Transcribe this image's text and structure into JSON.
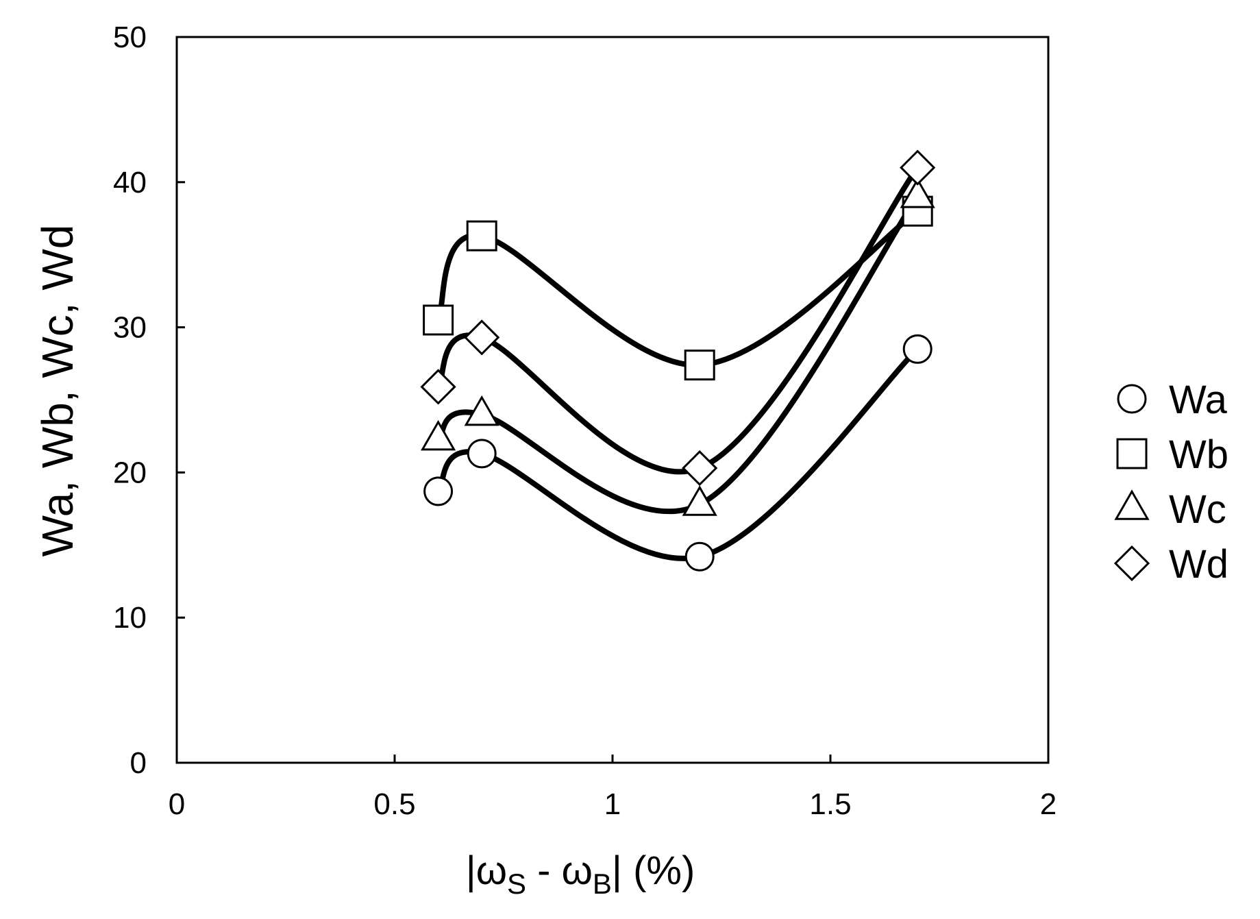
{
  "chart_data": {
    "type": "line",
    "xlim": [
      0,
      2
    ],
    "ylim": [
      0,
      50
    ],
    "xticks": [
      {
        "value": 0,
        "label": "0"
      },
      {
        "value": 0.5,
        "label": "0.5"
      },
      {
        "value": 1,
        "label": "1"
      },
      {
        "value": 1.5,
        "label": "1.5"
      },
      {
        "value": 2,
        "label": "2"
      }
    ],
    "yticks": [
      {
        "value": 0,
        "label": "0"
      },
      {
        "value": 10,
        "label": "10"
      },
      {
        "value": 20,
        "label": "20"
      },
      {
        "value": 30,
        "label": "30"
      },
      {
        "value": 40,
        "label": "40"
      },
      {
        "value": 50,
        "label": "50"
      }
    ],
    "xlabel": {
      "prefix": "|ω",
      "sub1": "S",
      "mid": " - ω",
      "sub2": "B",
      "suffix": "| (%)"
    },
    "ylabel": "Wa, Wb, Wc, Wd",
    "grid": false,
    "legend_position": "right",
    "x": [
      0.6,
      0.7,
      1.2,
      1.7
    ],
    "series": [
      {
        "name": "Wa",
        "marker": "circle",
        "values": [
          18.7,
          21.3,
          14.2,
          28.5
        ]
      },
      {
        "name": "Wb",
        "marker": "square",
        "values": [
          30.5,
          36.3,
          27.4,
          38.0
        ]
      },
      {
        "name": "Wc",
        "marker": "triangle",
        "values": [
          22.3,
          24.0,
          17.8,
          39.0
        ]
      },
      {
        "name": "Wd",
        "marker": "diamond",
        "values": [
          25.9,
          29.3,
          20.3,
          41.0
        ]
      }
    ]
  }
}
